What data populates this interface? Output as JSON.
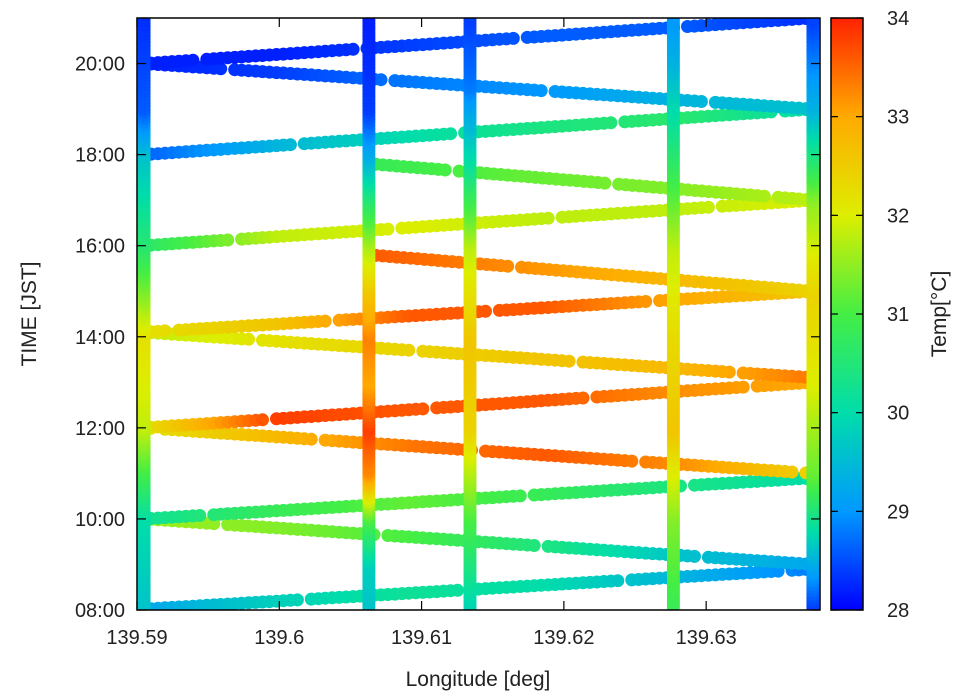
{
  "chart_data": {
    "type": "scatter",
    "title": "",
    "xlabel": "Longitude [deg]",
    "ylabel": "TIME [JST]",
    "colorbar_label": "Temp[°C]",
    "xlim": [
      139.59,
      139.638
    ],
    "ylim": [
      "08:00",
      "21:00"
    ],
    "clim": [
      28,
      34
    ],
    "grid": false,
    "x_ticks": [
      "139.59",
      "139.6",
      "139.61",
      "139.62",
      "139.63"
    ],
    "y_ticks": [
      "08:00",
      "10:00",
      "12:00",
      "14:00",
      "16:00",
      "18:00",
      "20:00"
    ],
    "color_ticks": [
      "28",
      "29",
      "30",
      "31",
      "32",
      "33",
      "34"
    ],
    "colormap": [
      "#0000ff",
      "#0099ff",
      "#00ddaa",
      "#44ee44",
      "#ddee00",
      "#ffaa00",
      "#ff2200"
    ],
    "vertical_tracks": [
      {
        "lon": 139.5905,
        "temps": [
          [
            8.0,
            29.6
          ],
          [
            10.0,
            30.0
          ],
          [
            12.0,
            31.8
          ],
          [
            14.0,
            32.2
          ],
          [
            16.0,
            30.6
          ],
          [
            18.0,
            29.6
          ],
          [
            19.0,
            28.6
          ],
          [
            21.0,
            28.3
          ]
        ]
      },
      {
        "lon": 139.6063,
        "temps": [
          [
            8.0,
            29.6
          ],
          [
            9.0,
            29.8
          ],
          [
            10.0,
            31.0
          ],
          [
            11.0,
            33.2
          ],
          [
            12.0,
            33.8
          ],
          [
            13.0,
            33.0
          ],
          [
            14.0,
            33.3
          ],
          [
            15.0,
            32.6
          ],
          [
            16.0,
            31.7
          ],
          [
            17.0,
            30.6
          ],
          [
            18.0,
            29.3
          ],
          [
            19.0,
            28.4
          ],
          [
            21.0,
            28.2
          ]
        ]
      },
      {
        "lon": 139.6134,
        "temps": [
          [
            8.0,
            29.8
          ],
          [
            10.0,
            31.0
          ],
          [
            12.0,
            32.4
          ],
          [
            14.0,
            32.6
          ],
          [
            16.0,
            31.8
          ],
          [
            18.0,
            30.0
          ],
          [
            19.5,
            28.8
          ],
          [
            21.0,
            28.4
          ]
        ]
      },
      {
        "lon": 139.6277,
        "temps": [
          [
            8.0,
            30.8
          ],
          [
            10.0,
            31.4
          ],
          [
            12.0,
            32.6
          ],
          [
            14.0,
            32.3
          ],
          [
            16.0,
            31.8
          ],
          [
            18.0,
            30.6
          ],
          [
            20.0,
            29.4
          ],
          [
            21.0,
            29.0
          ]
        ]
      },
      {
        "lon": 139.6375,
        "temps": [
          [
            8.0,
            28.3
          ],
          [
            9.0,
            29.2
          ],
          [
            11.0,
            31.2
          ],
          [
            13.0,
            32.0
          ],
          [
            15.0,
            32.4
          ],
          [
            17.0,
            31.5
          ],
          [
            19.0,
            29.4
          ],
          [
            21.0,
            28.4
          ]
        ]
      }
    ],
    "transect_tracks": [
      {
        "from": [
          139.5905,
          8.02
        ],
        "to": [
          139.6375,
          8.9
        ],
        "temps": [
          29.2,
          29.8,
          30.2,
          30.0,
          29.4,
          28.8
        ]
      },
      {
        "from": [
          139.6375,
          9.0
        ],
        "to": [
          139.5905,
          10.0
        ],
        "temps": [
          29.2,
          29.6,
          30.4,
          31.0,
          31.4,
          31.6
        ]
      },
      {
        "from": [
          139.5905,
          10.0
        ],
        "to": [
          139.6375,
          10.9
        ],
        "temps": [
          30.2,
          30.8,
          31.2,
          30.8,
          30.4,
          30.0
        ]
      },
      {
        "from": [
          139.6375,
          11.0
        ],
        "to": [
          139.5905,
          12.0
        ],
        "temps": [
          32.4,
          33.2,
          33.6,
          33.4,
          32.8,
          32.2
        ]
      },
      {
        "from": [
          139.5905,
          12.0
        ],
        "to": [
          139.6375,
          13.0
        ],
        "temps": [
          32.2,
          33.8,
          33.6,
          33.6,
          33.2,
          33.0
        ]
      },
      {
        "from": [
          139.6375,
          13.1
        ],
        "to": [
          139.5905,
          14.1
        ],
        "temps": [
          33.4,
          32.8,
          32.6,
          32.4,
          32.2,
          31.8
        ]
      },
      {
        "from": [
          139.5905,
          14.1
        ],
        "to": [
          139.6375,
          15.0
        ],
        "temps": [
          32.2,
          32.6,
          33.6,
          33.6,
          33.0,
          32.6
        ]
      },
      {
        "from": [
          139.6375,
          15.0
        ],
        "to": [
          139.6063,
          15.8
        ],
        "temps": [
          32.4,
          32.8,
          33.2,
          33.6
        ]
      },
      {
        "from": [
          139.5905,
          16.0
        ],
        "to": [
          139.6375,
          17.0
        ],
        "temps": [
          30.6,
          31.8,
          32.0,
          31.8,
          31.8,
          32.0
        ]
      },
      {
        "from": [
          139.6375,
          17.0
        ],
        "to": [
          139.6063,
          17.8
        ],
        "temps": [
          31.8,
          31.4,
          31.2,
          30.8
        ]
      },
      {
        "from": [
          139.5905,
          18.0
        ],
        "to": [
          139.6375,
          19.0
        ],
        "temps": [
          28.6,
          29.4,
          30.0,
          30.4,
          30.6,
          30.0
        ]
      },
      {
        "from": [
          139.6375,
          19.0
        ],
        "to": [
          139.5905,
          20.0
        ],
        "temps": [
          29.6,
          29.4,
          29.0,
          28.8,
          28.4,
          28.2
        ]
      },
      {
        "from": [
          139.5905,
          20.0
        ],
        "to": [
          139.6375,
          21.0
        ],
        "temps": [
          28.2,
          28.2,
          28.4,
          28.6,
          28.6,
          28.3
        ]
      }
    ]
  }
}
